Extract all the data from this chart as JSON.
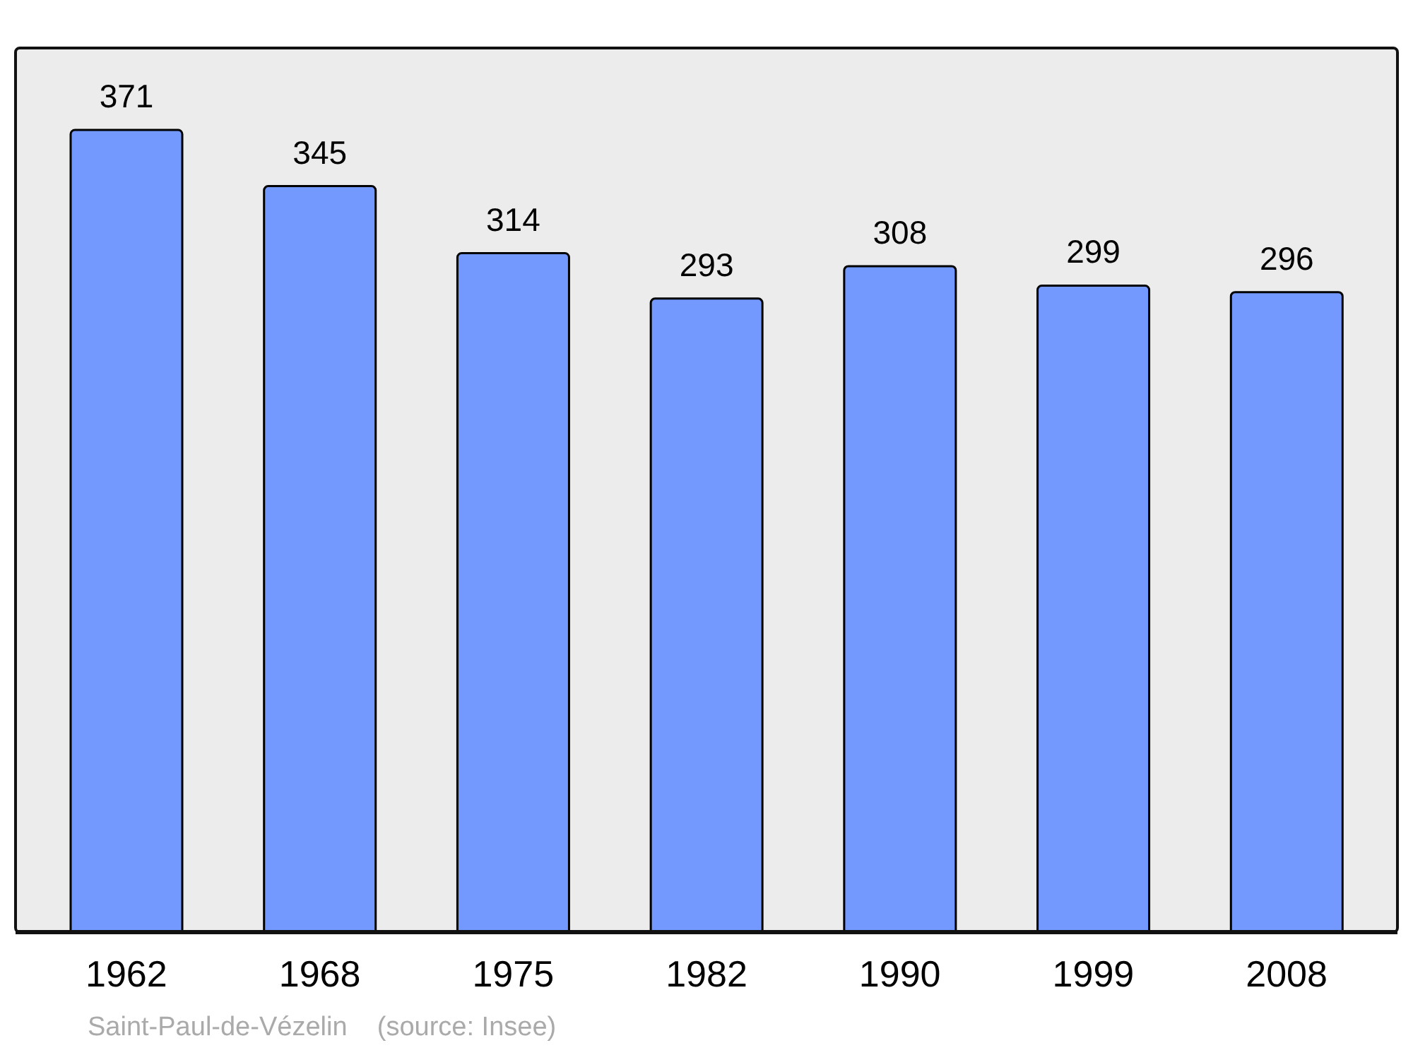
{
  "chart_data": {
    "type": "bar",
    "categories": [
      "1962",
      "1968",
      "1975",
      "1982",
      "1990",
      "1999",
      "2008"
    ],
    "values": [
      371,
      345,
      314,
      293,
      308,
      299,
      296
    ],
    "color": "#7399ff",
    "data_labels": true,
    "grid": false,
    "legend": false,
    "annotations": [
      "Saint-Paul-de-Vézelin    (source: Insee)"
    ]
  }
}
